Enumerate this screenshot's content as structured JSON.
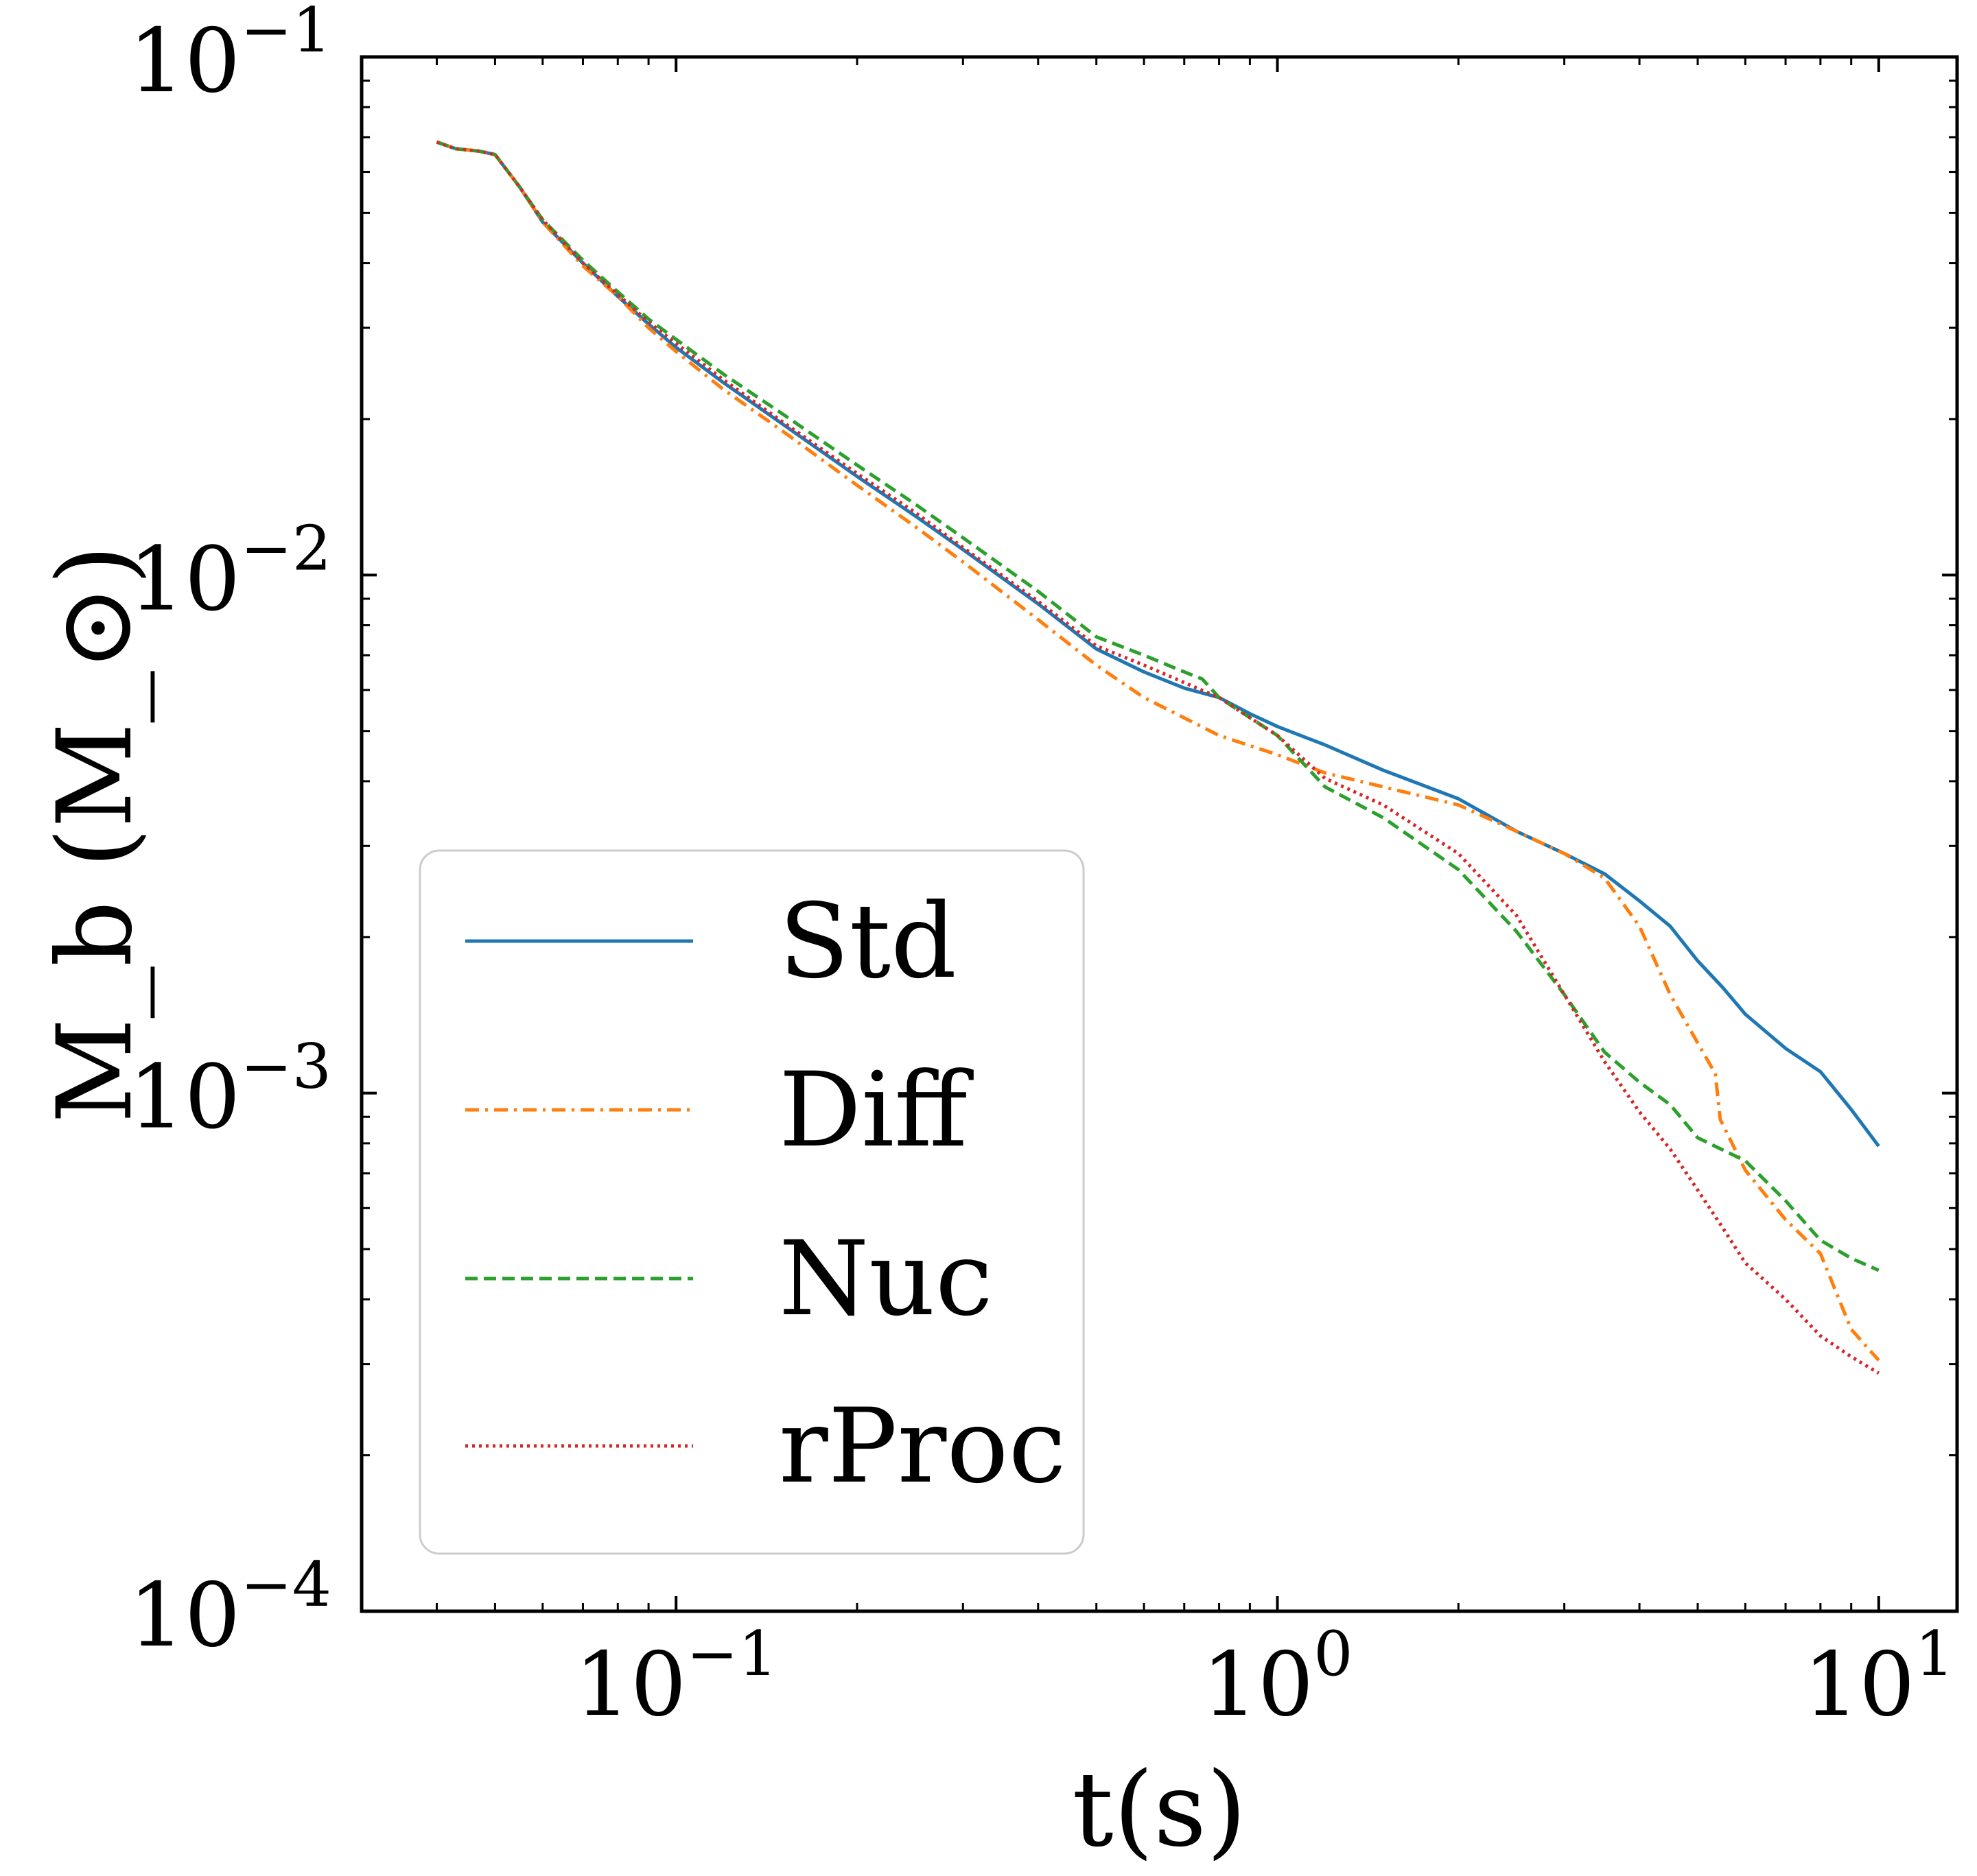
{
  "chart_data": {
    "type": "line",
    "xlabel": "t(s)",
    "ylabel": "M_b (M_⊙)",
    "x_scale": "log",
    "y_scale": "log",
    "xlim": [
      0.03,
      13.5
    ],
    "ylim": [
      0.0001,
      0.1
    ],
    "grid": false,
    "legend_position": "lower-left",
    "x_ticks": [
      {
        "value": 0.1,
        "base": "10",
        "exp": "−1"
      },
      {
        "value": 1,
        "base": "10",
        "exp": "0"
      },
      {
        "value": 10,
        "base": "10",
        "exp": "1"
      }
    ],
    "y_ticks": [
      {
        "value": 0.1,
        "base": "10",
        "exp": "−1"
      },
      {
        "value": 0.01,
        "base": "10",
        "exp": "−2"
      },
      {
        "value": 0.001,
        "base": "10",
        "exp": "−3"
      },
      {
        "value": 0.0001,
        "base": "10",
        "exp": "−4"
      }
    ],
    "series": [
      {
        "name": "Std",
        "color": "#1f77b4",
        "dash": "",
        "points": [
          [
            0.04,
            0.0685
          ],
          [
            0.043,
            0.0665
          ],
          [
            0.047,
            0.0658
          ],
          [
            0.05,
            0.0648
          ],
          [
            0.055,
            0.056
          ],
          [
            0.06,
            0.048
          ],
          [
            0.07,
            0.04
          ],
          [
            0.08,
            0.0345
          ],
          [
            0.09,
            0.0305
          ],
          [
            0.1,
            0.0275
          ],
          [
            0.12,
            0.0235
          ],
          [
            0.15,
            0.0196
          ],
          [
            0.2,
            0.0155
          ],
          [
            0.25,
            0.013
          ],
          [
            0.3,
            0.0112
          ],
          [
            0.4,
            0.0088
          ],
          [
            0.5,
            0.0072
          ],
          [
            0.6,
            0.0065
          ],
          [
            0.7,
            0.00605
          ],
          [
            0.8,
            0.0058
          ],
          [
            0.9,
            0.0054
          ],
          [
            1.0,
            0.0051
          ],
          [
            1.2,
            0.0047
          ],
          [
            1.5,
            0.0042
          ],
          [
            2.0,
            0.0037
          ],
          [
            2.5,
            0.0032
          ],
          [
            3.0,
            0.0029
          ],
          [
            3.5,
            0.00265
          ],
          [
            4.0,
            0.00235
          ],
          [
            4.5,
            0.0021
          ],
          [
            5.0,
            0.0018
          ],
          [
            5.5,
            0.0016
          ],
          [
            6.0,
            0.00142
          ],
          [
            7.0,
            0.00122
          ],
          [
            8.0,
            0.0011
          ],
          [
            9.0,
            0.00093
          ],
          [
            10.0,
            0.00079
          ]
        ]
      },
      {
        "name": "Diff",
        "color": "#ff7f0e",
        "dash": "20,9,4,9",
        "points": [
          [
            0.04,
            0.0685
          ],
          [
            0.043,
            0.0665
          ],
          [
            0.047,
            0.0658
          ],
          [
            0.05,
            0.0648
          ],
          [
            0.055,
            0.056
          ],
          [
            0.06,
            0.048
          ],
          [
            0.07,
            0.0395
          ],
          [
            0.08,
            0.0345
          ],
          [
            0.09,
            0.03
          ],
          [
            0.1,
            0.027
          ],
          [
            0.12,
            0.0228
          ],
          [
            0.15,
            0.019
          ],
          [
            0.2,
            0.0149
          ],
          [
            0.25,
            0.0124
          ],
          [
            0.3,
            0.0106
          ],
          [
            0.4,
            0.0082
          ],
          [
            0.5,
            0.0067
          ],
          [
            0.6,
            0.0058
          ],
          [
            0.7,
            0.0053
          ],
          [
            0.8,
            0.0049
          ],
          [
            1.0,
            0.0045
          ],
          [
            1.2,
            0.00415
          ],
          [
            1.5,
            0.0039
          ],
          [
            2.0,
            0.0036
          ],
          [
            2.5,
            0.0032
          ],
          [
            3.0,
            0.0029
          ],
          [
            3.5,
            0.0026
          ],
          [
            4.0,
            0.0021
          ],
          [
            4.5,
            0.00155
          ],
          [
            5.0,
            0.00125
          ],
          [
            5.35,
            0.00109
          ],
          [
            5.45,
            0.00089
          ],
          [
            6.0,
            0.00071
          ],
          [
            7.0,
            0.00057
          ],
          [
            8.0,
            0.00049
          ],
          [
            9.0,
            0.00035
          ],
          [
            10.0,
            0.000305
          ]
        ]
      },
      {
        "name": "Nuc",
        "color": "#2ca02c",
        "dash": "18,9",
        "points": [
          [
            0.04,
            0.0685
          ],
          [
            0.043,
            0.0665
          ],
          [
            0.047,
            0.0658
          ],
          [
            0.05,
            0.0648
          ],
          [
            0.055,
            0.056
          ],
          [
            0.06,
            0.0485
          ],
          [
            0.07,
            0.0405
          ],
          [
            0.08,
            0.0352
          ],
          [
            0.09,
            0.0312
          ],
          [
            0.1,
            0.0285
          ],
          [
            0.12,
            0.0244
          ],
          [
            0.15,
            0.0205
          ],
          [
            0.2,
            0.0163
          ],
          [
            0.25,
            0.0137
          ],
          [
            0.3,
            0.0118
          ],
          [
            0.4,
            0.0093
          ],
          [
            0.5,
            0.0076
          ],
          [
            0.6,
            0.007
          ],
          [
            0.7,
            0.0065
          ],
          [
            0.75,
            0.0063
          ],
          [
            0.8,
            0.0058
          ],
          [
            1.0,
            0.0049
          ],
          [
            1.2,
            0.0039
          ],
          [
            1.5,
            0.0034
          ],
          [
            2.0,
            0.0027
          ],
          [
            2.5,
            0.00205
          ],
          [
            3.0,
            0.00155
          ],
          [
            3.5,
            0.0012
          ],
          [
            4.0,
            0.00105
          ],
          [
            4.5,
            0.00095
          ],
          [
            5.0,
            0.00082
          ],
          [
            6.0,
            0.00074
          ],
          [
            7.0,
            0.00062
          ],
          [
            8.0,
            0.00052
          ],
          [
            9.0,
            0.00048
          ],
          [
            10.0,
            0.000455
          ]
        ]
      },
      {
        "name": "rProc",
        "color": "#d62728",
        "dash": "4,6",
        "points": [
          [
            0.04,
            0.0685
          ],
          [
            0.043,
            0.0665
          ],
          [
            0.047,
            0.0658
          ],
          [
            0.05,
            0.0648
          ],
          [
            0.055,
            0.056
          ],
          [
            0.06,
            0.0485
          ],
          [
            0.07,
            0.04
          ],
          [
            0.08,
            0.0348
          ],
          [
            0.09,
            0.0308
          ],
          [
            0.1,
            0.028
          ],
          [
            0.12,
            0.0238
          ],
          [
            0.15,
            0.0198
          ],
          [
            0.2,
            0.0157
          ],
          [
            0.25,
            0.0132
          ],
          [
            0.3,
            0.0113
          ],
          [
            0.4,
            0.0089
          ],
          [
            0.5,
            0.0073
          ],
          [
            0.6,
            0.0067
          ],
          [
            0.7,
            0.0062
          ],
          [
            0.8,
            0.0058
          ],
          [
            1.0,
            0.0049
          ],
          [
            1.2,
            0.00405
          ],
          [
            1.5,
            0.0036
          ],
          [
            2.0,
            0.0029
          ],
          [
            2.5,
            0.0022
          ],
          [
            3.0,
            0.00155
          ],
          [
            3.5,
            0.00115
          ],
          [
            4.0,
            0.00092
          ],
          [
            4.5,
            0.00078
          ],
          [
            5.0,
            0.00065
          ],
          [
            5.5,
            0.00055
          ],
          [
            6.0,
            0.00047
          ],
          [
            7.0,
            0.0004
          ],
          [
            8.0,
            0.00034
          ],
          [
            9.0,
            0.00031
          ],
          [
            10.0,
            0.000288
          ]
        ]
      }
    ]
  }
}
